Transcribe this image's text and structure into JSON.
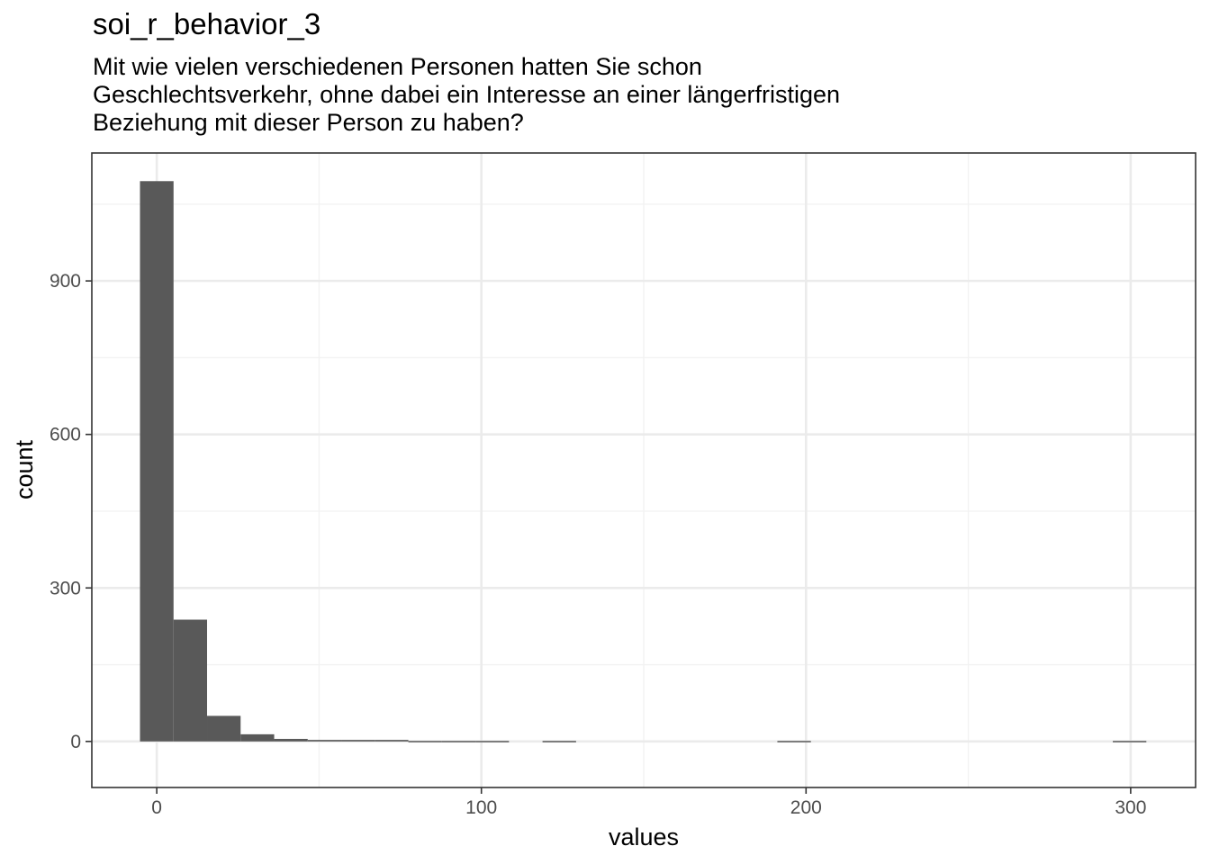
{
  "header": {
    "title": "soi_r_behavior_3",
    "subtitle_lines": [
      "Mit wie vielen verschiedenen Personen hatten Sie schon",
      "Geschlechtsverkehr, ohne dabei ein Interesse an einer längerfristigen",
      "Beziehung mit dieser Person zu haben?"
    ]
  },
  "chart_data": {
    "type": "bar",
    "title": "soi_r_behavior_3",
    "subtitle": "Mit wie vielen verschiedenen Personen hatten Sie schon Geschlechtsverkehr, ohne dabei ein Interesse an einer längerfristigen Beziehung mit dieser Person zu haben?",
    "xlabel": "values",
    "ylabel": "count",
    "xlim": [
      -20,
      320
    ],
    "ylim": [
      -90,
      1150
    ],
    "x_ticks": [
      0,
      100,
      200,
      300
    ],
    "y_ticks": [
      0,
      300,
      600,
      900
    ],
    "bin_width": 10.33,
    "bins": [
      {
        "x0": -5.17,
        "x1": 5.17,
        "count": 1095
      },
      {
        "x0": 5.17,
        "x1": 15.5,
        "count": 238
      },
      {
        "x0": 15.5,
        "x1": 25.83,
        "count": 50
      },
      {
        "x0": 25.83,
        "x1": 36.17,
        "count": 14
      },
      {
        "x0": 36.17,
        "x1": 46.5,
        "count": 5
      },
      {
        "x0": 46.5,
        "x1": 56.83,
        "count": 3
      },
      {
        "x0": 56.83,
        "x1": 67.17,
        "count": 3
      },
      {
        "x0": 67.17,
        "x1": 77.5,
        "count": 3
      },
      {
        "x0": 77.5,
        "x1": 87.83,
        "count": 1
      },
      {
        "x0": 87.83,
        "x1": 98.17,
        "count": 1
      },
      {
        "x0": 98.17,
        "x1": 108.5,
        "count": 1
      },
      {
        "x0": 118.83,
        "x1": 129.17,
        "count": 1
      },
      {
        "x0": 191.17,
        "x1": 201.5,
        "count": 1
      },
      {
        "x0": 294.5,
        "x1": 304.83,
        "count": 1
      }
    ],
    "grid": true,
    "legend": "none",
    "colors": {
      "bar": "#595959",
      "panel_border": "#333333",
      "grid_major": "#ebebeb",
      "grid_minor": "#f2f2f2"
    }
  }
}
